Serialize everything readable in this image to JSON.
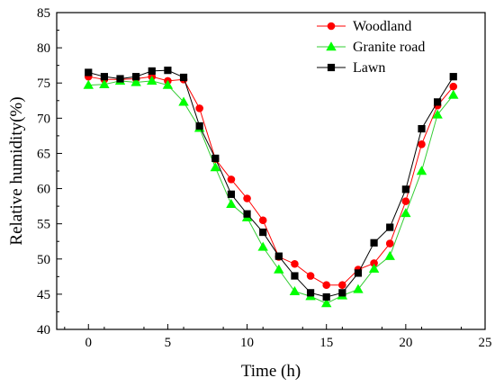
{
  "chart_data": {
    "type": "line",
    "xlabel": "Time (h)",
    "ylabel": "Relative humidity(%)",
    "xlim": [
      -2,
      25
    ],
    "ylim": [
      40,
      85
    ],
    "xticks": [
      0,
      5,
      10,
      15,
      20,
      25
    ],
    "yticks": [
      40,
      45,
      50,
      55,
      60,
      65,
      70,
      75,
      80,
      85
    ],
    "legend_position": "top-right",
    "x": [
      0,
      1,
      2,
      3,
      4,
      5,
      6,
      7,
      8,
      9,
      10,
      11,
      12,
      13,
      14,
      15,
      16,
      17,
      18,
      19,
      20,
      21,
      22,
      23
    ],
    "series": [
      {
        "name": "Woodland",
        "color": "#ff0000",
        "marker": "circle",
        "values": [
          75.9,
          75.5,
          75.5,
          75.6,
          75.9,
          75.3,
          75.5,
          71.4,
          64.2,
          61.3,
          58.6,
          55.5,
          50.3,
          49.3,
          47.6,
          46.3,
          46.3,
          48.5,
          49.4,
          52.2,
          58.2,
          66.3,
          71.8,
          74.5
        ]
      },
      {
        "name": "Granite road",
        "color": "#00ff00",
        "marker": "triangle",
        "values": [
          74.7,
          74.8,
          75.3,
          75.1,
          75.3,
          74.7,
          72.3,
          68.6,
          63.0,
          57.8,
          55.9,
          51.7,
          48.5,
          45.4,
          44.7,
          43.7,
          44.8,
          45.7,
          48.6,
          50.4,
          56.5,
          62.5,
          70.5,
          73.3
        ]
      },
      {
        "name": "Lawn",
        "color": "#000000",
        "marker": "square",
        "values": [
          76.5,
          75.9,
          75.6,
          75.9,
          76.7,
          76.8,
          75.8,
          68.9,
          64.3,
          59.2,
          56.4,
          53.8,
          50.4,
          47.6,
          45.2,
          44.6,
          45.2,
          48.0,
          52.3,
          54.5,
          59.9,
          68.5,
          72.3,
          75.9
        ]
      }
    ]
  }
}
